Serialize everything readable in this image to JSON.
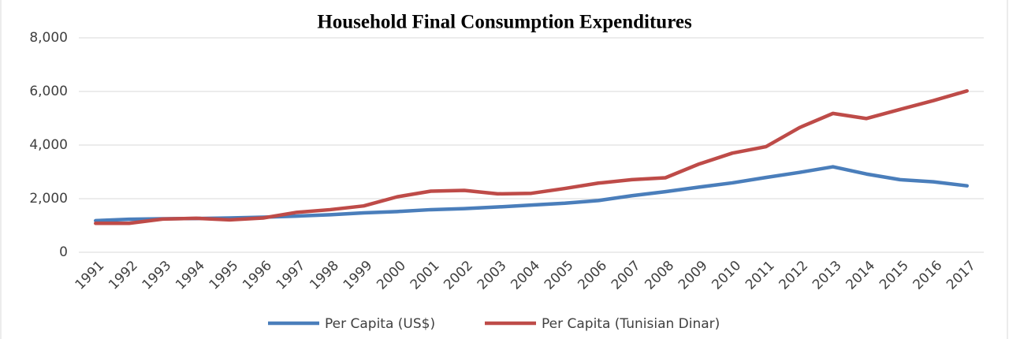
{
  "chart_data": {
    "type": "line",
    "title": "Household Final Consumption Expenditures",
    "categories": [
      "1991",
      "1992",
      "1993",
      "1994",
      "1995",
      "1996",
      "1997",
      "1998",
      "1999",
      "2000",
      "2001",
      "2002",
      "2003",
      "2004",
      "2005",
      "2006",
      "2007",
      "2008",
      "2009",
      "2010",
      "2011",
      "2012",
      "2013",
      "2014",
      "2015",
      "2016",
      "2017"
    ],
    "series": [
      {
        "name": "Per Capita (US$)",
        "color": "#4a7ebb",
        "values": [
          1180,
          1230,
          1250,
          1260,
          1280,
          1310,
          1350,
          1400,
          1470,
          1520,
          1590,
          1630,
          1690,
          1760,
          1830,
          1930,
          2110,
          2260,
          2430,
          2590,
          2790,
          2980,
          3190,
          2920,
          2710,
          2630,
          2480
        ]
      },
      {
        "name": "Per Capita (Tunisian Dinar)",
        "color": "#be4b48",
        "values": [
          1080,
          1080,
          1240,
          1270,
          1210,
          1280,
          1490,
          1590,
          1730,
          2070,
          2280,
          2310,
          2180,
          2200,
          2380,
          2580,
          2710,
          2780,
          3290,
          3700,
          3940,
          4650,
          5180,
          4990,
          5330,
          5660,
          6020
        ]
      }
    ],
    "ylim": [
      0,
      8000
    ],
    "yticks": [
      0,
      {
        "value": 2000,
        "label": "2,000"
      },
      {
        "value": 4000,
        "label": "4,000"
      },
      {
        "value": 6000,
        "label": "6,000"
      },
      {
        "value": 8000,
        "label": "8,000"
      }
    ],
    "grid": true,
    "legend": "bottom"
  }
}
